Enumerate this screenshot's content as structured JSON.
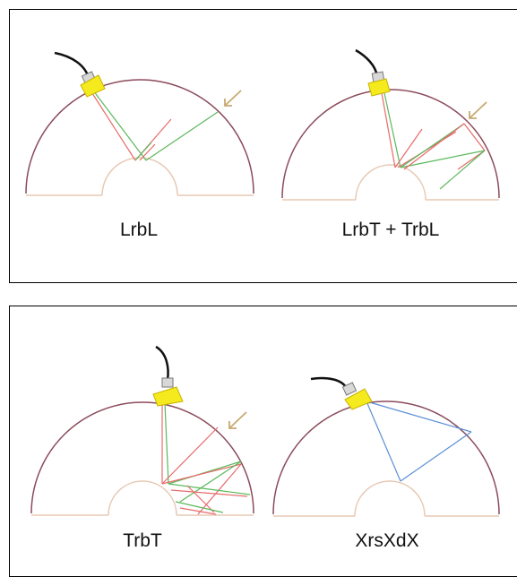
{
  "panels": [
    {
      "caption": "LrbL"
    },
    {
      "caption": "LrbT + TrbL"
    },
    {
      "caption": "TrbT"
    },
    {
      "caption": "XrsXdX"
    }
  ],
  "colors": {
    "outer_arc": "#8b4a5a",
    "inner_arc": "#e8c9b4",
    "probe_body": "#f5ea1e",
    "probe_outline": "#c8b400",
    "cable": "#111111",
    "connector": "#d8d8d8",
    "ray_red": "#e86a6a",
    "ray_green": "#5cb85c",
    "ray_blue": "#5b8fd6",
    "arrow": "#c8aa70"
  }
}
